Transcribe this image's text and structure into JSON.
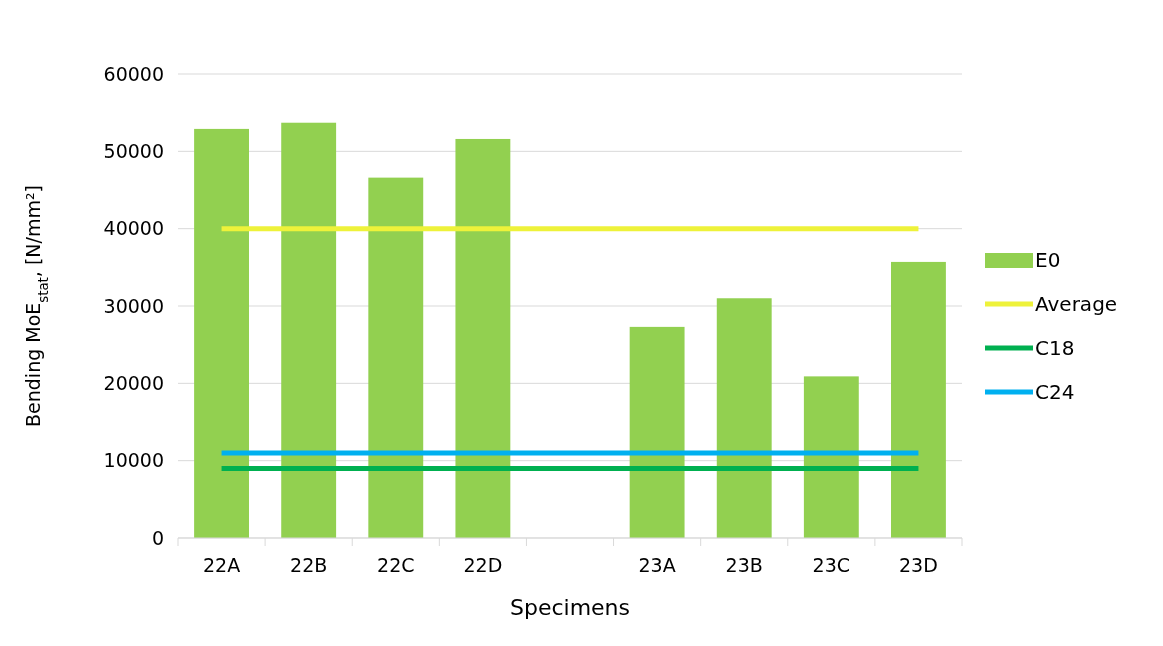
{
  "chart_data": {
    "type": "bar",
    "xlabel": "Specimens",
    "ylabel": "Bending MoE$_{stat}$, [N/mm²]",
    "categories": [
      "22A",
      "22B",
      "22C",
      "22D",
      null,
      "23A",
      "23B",
      "23C",
      "23D"
    ],
    "series": [
      {
        "name": "E0",
        "color": "#92d050",
        "values": [
          52900,
          53700,
          46600,
          51600,
          null,
          27300,
          31000,
          20900,
          35700
        ]
      },
      {
        "name": "Average",
        "type": "line",
        "color": "#eef23a",
        "values": [
          40000,
          40000,
          40000,
          40000,
          40000,
          40000,
          40000,
          40000,
          40000
        ]
      },
      {
        "name": "C18",
        "type": "line",
        "color": "#00b050",
        "values": [
          9000,
          9000,
          9000,
          9000,
          9000,
          9000,
          9000,
          9000,
          9000
        ]
      },
      {
        "name": "C24",
        "type": "line",
        "color": "#00b0f0",
        "values": [
          11000,
          11000,
          11000,
          11000,
          11000,
          11000,
          11000,
          11000,
          11000
        ]
      }
    ],
    "ylim": [
      0,
      60000
    ],
    "yticks": [
      0,
      10000,
      20000,
      30000,
      40000,
      50000,
      60000
    ],
    "grid": "y",
    "legend": "right"
  }
}
